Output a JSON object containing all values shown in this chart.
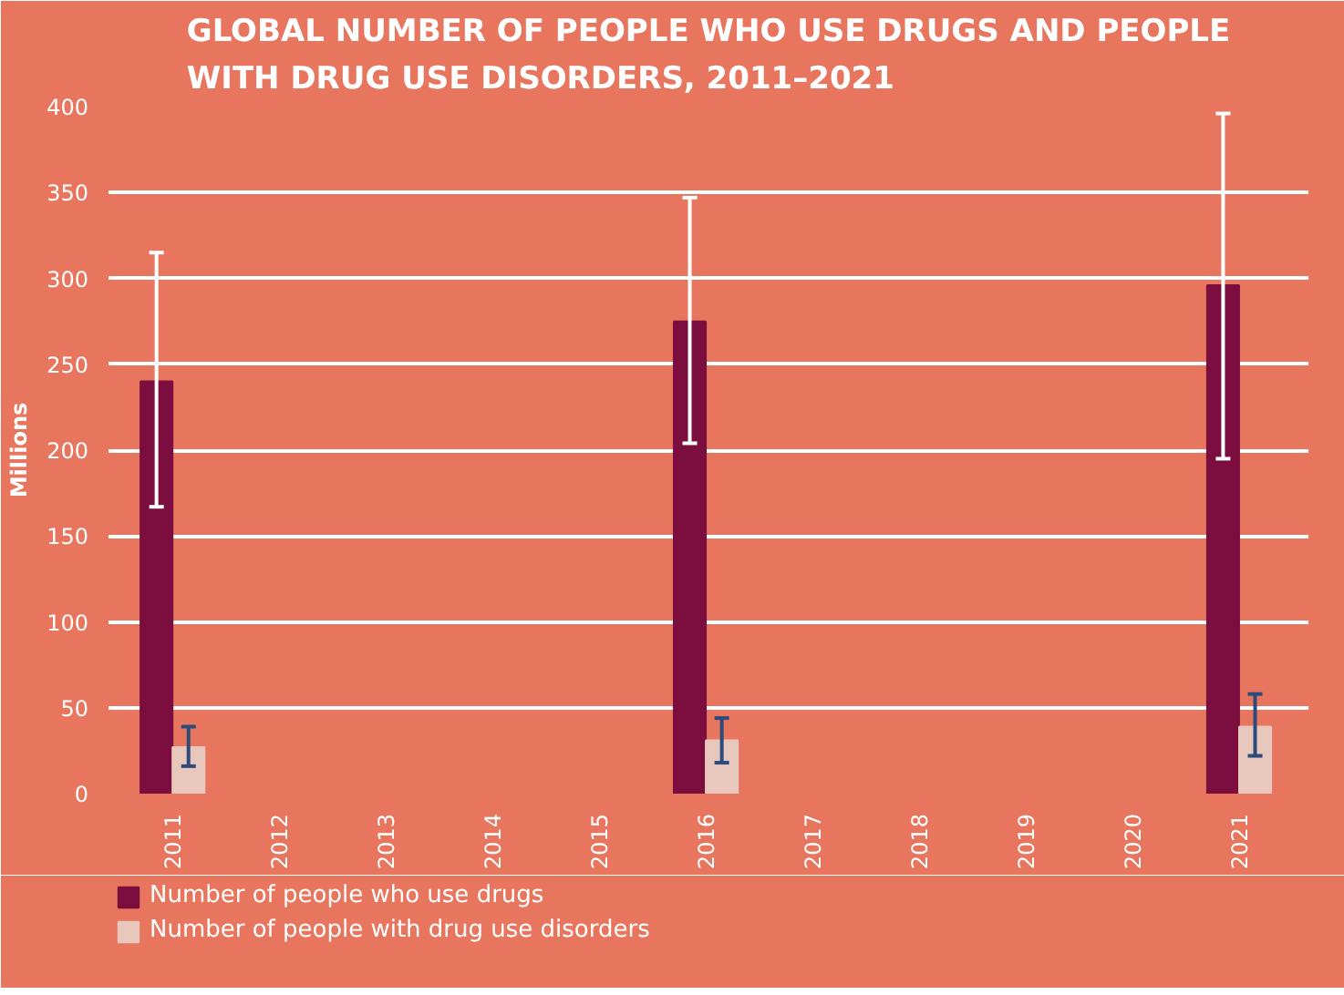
{
  "chart_data": {
    "type": "bar",
    "title": "GLOBAL NUMBER OF PEOPLE WHO USE DRUGS AND PEOPLE\nWITH DRUG USE DISORDERS, 2011–2021",
    "ylabel": "Millions",
    "categories": [
      "2011",
      "2012",
      "2013",
      "2014",
      "2015",
      "2016",
      "2017",
      "2018",
      "2019",
      "2020",
      "2021"
    ],
    "series": [
      {
        "name": "Number of people who use drugs",
        "color": "#7b0e3f",
        "values": [
          240,
          null,
          null,
          null,
          null,
          275,
          null,
          null,
          null,
          null,
          296
        ],
        "errors": [
          [
            167,
            315
          ],
          null,
          null,
          null,
          null,
          [
            204,
            347
          ],
          null,
          null,
          null,
          null,
          [
            195,
            396
          ]
        ]
      },
      {
        "name": "Number of people with drug use disorders",
        "color": "#e8c8bd",
        "values": [
          27,
          null,
          null,
          null,
          null,
          31,
          null,
          null,
          null,
          null,
          39
        ],
        "errors": [
          [
            16,
            39
          ],
          null,
          null,
          null,
          null,
          [
            18,
            44
          ],
          null,
          null,
          null,
          null,
          [
            22,
            58
          ]
        ]
      }
    ],
    "ylim": [
      0,
      400
    ],
    "yticks": [
      0,
      50,
      100,
      150,
      200,
      250,
      300,
      350,
      400
    ],
    "grid": "y",
    "legend": "bottom"
  }
}
